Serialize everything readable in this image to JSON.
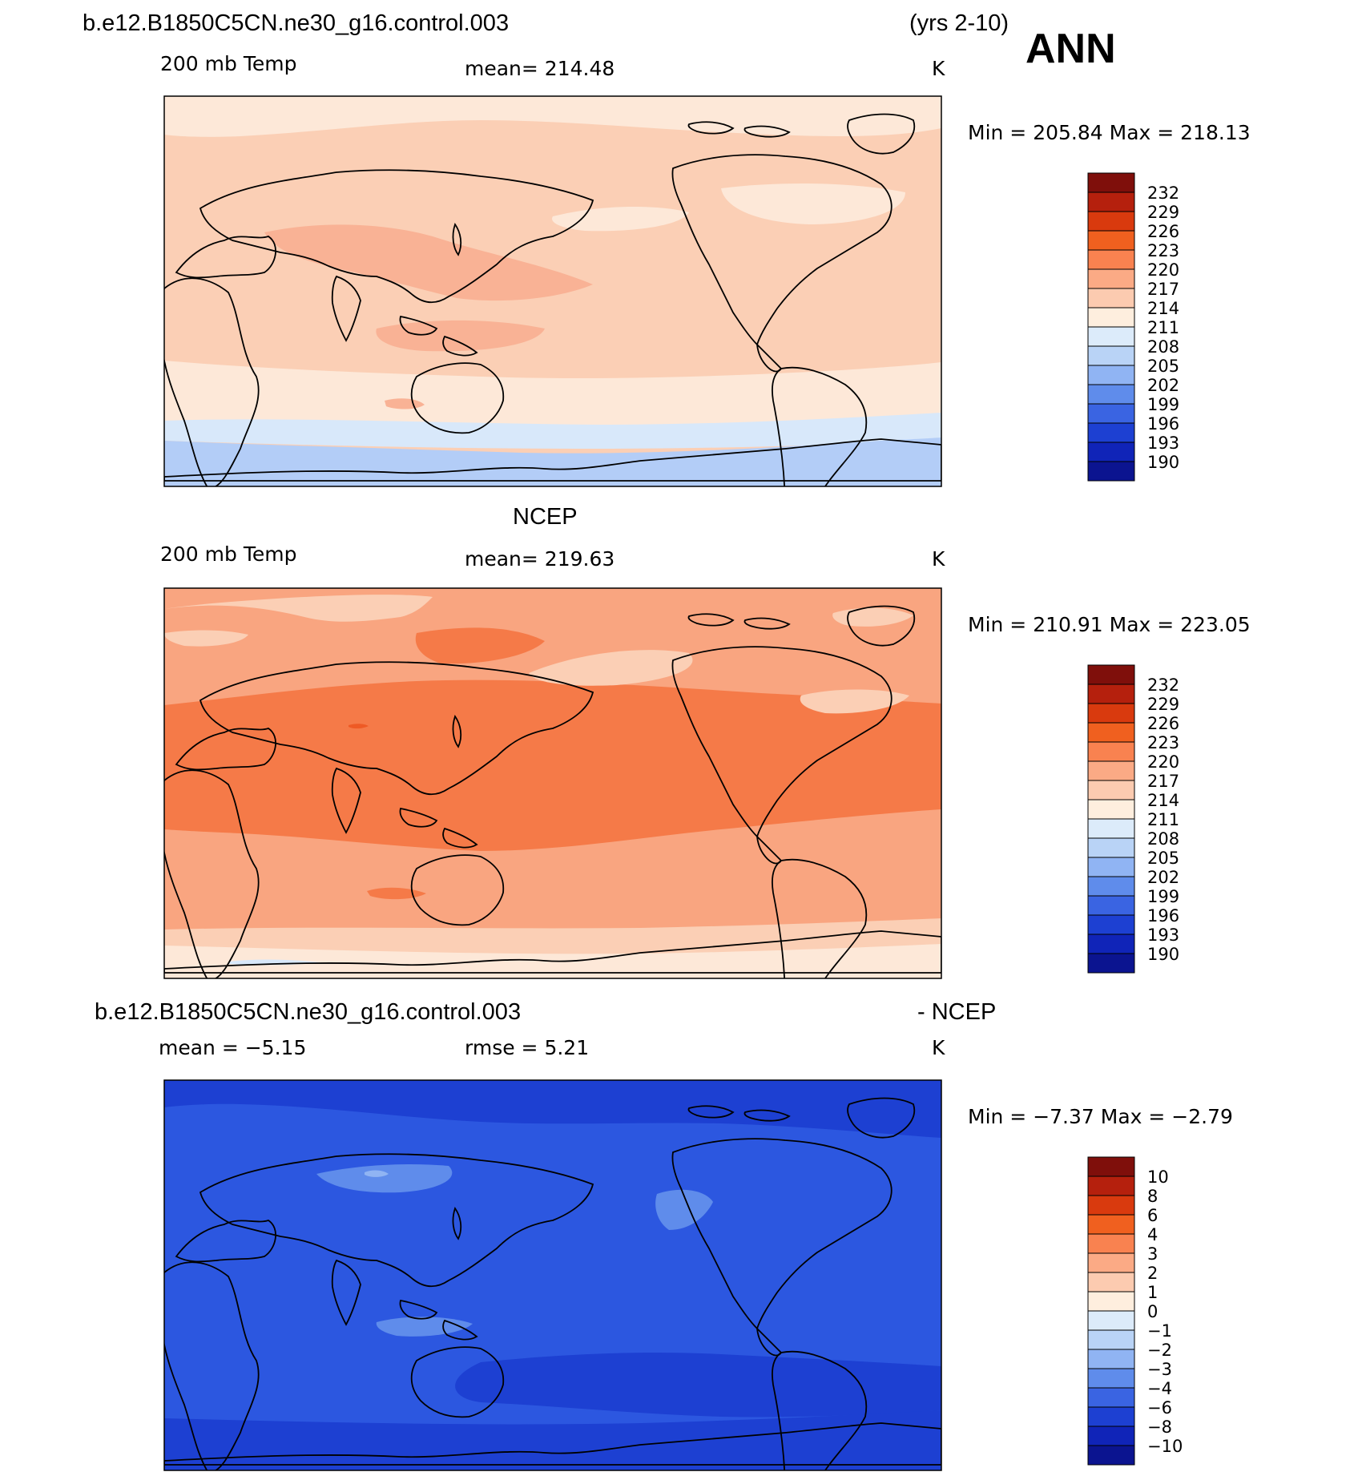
{
  "header": {
    "case_name": "b.e12.B1850C5CN.ne30_g16.control.003",
    "years": "(yrs 2-10)",
    "season": "ANN"
  },
  "panels": [
    {
      "id": "model",
      "title": "",
      "variable": "200 mb Temp",
      "stat_text": "mean=  214.48",
      "units": "K",
      "minmax": "Min  =  205.84  Max  =  218.13",
      "field_colors": {
        "polar_cap": "#b3cdf7",
        "polar_band": "#d8e8fa",
        "subpolar": "#fde8d8",
        "background": "#fbcfb5",
        "warm": "#f9b295"
      },
      "colorbar": {
        "labels": [
          "232",
          "229",
          "226",
          "223",
          "220",
          "217",
          "214",
          "211",
          "208",
          "205",
          "202",
          "199",
          "196",
          "193",
          "190"
        ],
        "colors": [
          "#7f0f0b",
          "#b5200d",
          "#d93a0e",
          "#f0601f",
          "#f98250",
          "#fbaa85",
          "#fccbb0",
          "#feeede",
          "#dcebfa",
          "#b9d3f6",
          "#90b4f3",
          "#5f8ceb",
          "#3a64e2",
          "#1d40d2",
          "#1024b8",
          "#0b1490"
        ]
      }
    },
    {
      "id": "obs",
      "title": "NCEP",
      "variable": "200 mb Temp",
      "stat_text": "mean=  219.63",
      "units": "K",
      "minmax": "Min  =  210.91  Max  =  223.05",
      "field_colors": {
        "polar": "#fde8d8",
        "subpolar": "#fbcfb5",
        "background": "#f9a580",
        "tropics": "#f57a48",
        "hot": "#ee5a25"
      },
      "colorbar": {
        "labels": [
          "232",
          "229",
          "226",
          "223",
          "220",
          "217",
          "214",
          "211",
          "208",
          "205",
          "202",
          "199",
          "196",
          "193",
          "190"
        ],
        "colors": [
          "#7f0f0b",
          "#b5200d",
          "#d93a0e",
          "#f0601f",
          "#f98250",
          "#fbaa85",
          "#fccbb0",
          "#feeede",
          "#dcebfa",
          "#b9d3f6",
          "#90b4f3",
          "#5f8ceb",
          "#3a64e2",
          "#1d40d2",
          "#1024b8",
          "#0b1490"
        ]
      }
    },
    {
      "id": "diff",
      "title": "b.e12.B1850C5CN.ne30_g16.control.003",
      "title_right": "- NCEP",
      "variable": "mean  =    −5.15",
      "stat_text": "rmse  =     5.21",
      "units": "K",
      "minmax": "Min  =    −7.37  Max  =    −2.79",
      "field_colors": {
        "background": "#2c57e0",
        "darker": "#1d40d2",
        "lighter": "#5f8ceb",
        "lightest": "#90b4f3"
      },
      "colorbar": {
        "labels": [
          "10",
          "8",
          "6",
          "4",
          "3",
          "2",
          "1",
          "0",
          "−1",
          "−2",
          "−3",
          "−4",
          "−6",
          "−8",
          "−10"
        ],
        "colors": [
          "#7f0f0b",
          "#b5200d",
          "#d93a0e",
          "#f0601f",
          "#f98250",
          "#fbaa85",
          "#fccbb0",
          "#feeede",
          "#dcebfa",
          "#b9d3f6",
          "#90b4f3",
          "#5f8ceb",
          "#3a64e2",
          "#1d40d2",
          "#1024b8",
          "#0b1490"
        ]
      }
    }
  ]
}
